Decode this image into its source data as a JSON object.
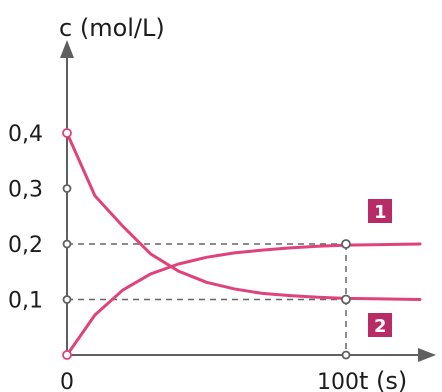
{
  "chart_data": {
    "type": "line",
    "title": "",
    "xlabel": "t (s)",
    "ylabel": "c (mol/L)",
    "xlim": [
      0,
      100
    ],
    "ylim": [
      0,
      0.4
    ],
    "x_ticks": [
      {
        "value": 0,
        "label": "0"
      },
      {
        "value": 100,
        "label": "100"
      }
    ],
    "y_ticks": [
      {
        "value": 0.4,
        "label": "0,4"
      },
      {
        "value": 0.3,
        "label": "0,3"
      },
      {
        "value": 0.2,
        "label": "0,2"
      },
      {
        "value": 0.1,
        "label": "0,1"
      }
    ],
    "grid": false,
    "reference_lines": [
      {
        "axis": "y",
        "value": 0.2,
        "style": "dashed"
      },
      {
        "axis": "y",
        "value": 0.1,
        "style": "dashed"
      },
      {
        "axis": "x",
        "value": 100,
        "style": "dashed"
      }
    ],
    "series": [
      {
        "label": "1",
        "x": [
          0,
          10,
          20,
          30,
          40,
          50,
          60,
          70,
          80,
          90,
          100
        ],
        "values": [
          0.0,
          0.072,
          0.117,
          0.146,
          0.164,
          0.176,
          0.184,
          0.189,
          0.193,
          0.196,
          0.198
        ],
        "plateau_after_100": 0.2
      },
      {
        "label": "2",
        "x": [
          0,
          10,
          20,
          30,
          40,
          50,
          60,
          70,
          80,
          90,
          100
        ],
        "values": [
          0.4,
          0.287,
          0.232,
          0.182,
          0.151,
          0.131,
          0.119,
          0.111,
          0.107,
          0.104,
          0.102
        ],
        "plateau_after_100": 0.1
      }
    ],
    "colors": {
      "series": "#e0427c",
      "badge": "#b82b67",
      "axis": "#5f5f5f",
      "reference": "#666666",
      "marker_fill": "#ffffff"
    }
  }
}
